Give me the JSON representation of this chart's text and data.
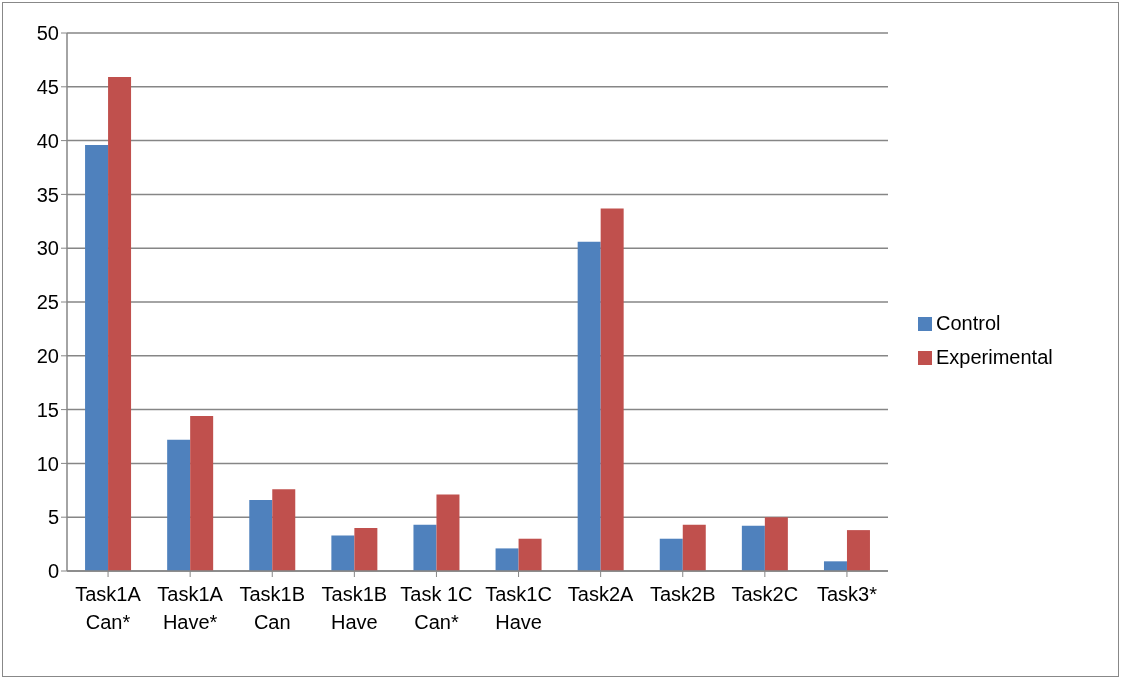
{
  "chart_data": {
    "type": "bar",
    "categories": [
      "Task1A Can*",
      "Task1A Have*",
      "Task1B Can",
      "Task1B Have",
      "Task 1C Can*",
      "Task1C Have",
      "Task2A",
      "Task2B",
      "Task2C",
      "Task3*"
    ],
    "series": [
      {
        "name": "Control",
        "color": "#4f81bd",
        "values": [
          39.6,
          12.2,
          6.6,
          3.3,
          4.3,
          2.1,
          30.6,
          3.0,
          4.2,
          0.9
        ]
      },
      {
        "name": "Experimental",
        "color": "#c0504d",
        "values": [
          45.9,
          14.4,
          7.6,
          4.0,
          7.1,
          3.0,
          33.7,
          4.3,
          5.0,
          3.8
        ]
      }
    ],
    "ylim": [
      0,
      50
    ],
    "yticks": [
      0,
      5,
      10,
      15,
      20,
      25,
      30,
      35,
      40,
      45,
      50
    ],
    "grid": "y",
    "legend": "right"
  }
}
